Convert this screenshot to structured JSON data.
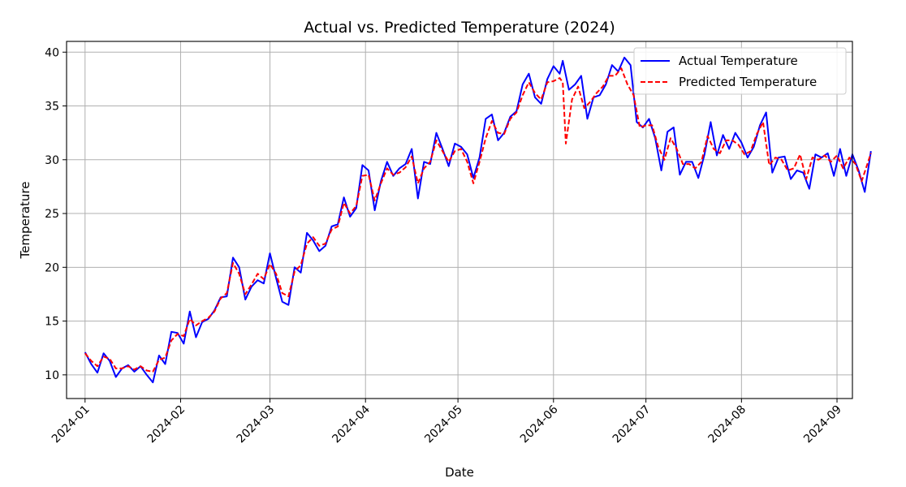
{
  "chart_data": {
    "type": "line",
    "title": "Actual vs. Predicted Temperature (2024)",
    "xlabel": "Date",
    "ylabel": "Temperature",
    "xlim": [
      "2023-12-26",
      "2024-09-06"
    ],
    "ylim": [
      7.8,
      41.0
    ],
    "x_ticks": [
      "2024-01",
      "2024-02",
      "2024-03",
      "2024-04",
      "2024-05",
      "2024-06",
      "2024-07",
      "2024-08",
      "2024-09"
    ],
    "y_ticks": [
      10,
      15,
      20,
      25,
      30,
      35,
      40
    ],
    "grid": true,
    "legend_position": "top-right",
    "series": [
      {
        "name": "Actual Temperature",
        "color": "#0000ff",
        "style": "solid",
        "points": [
          [
            "2024-01-01",
            12.1
          ],
          [
            "2024-01-03",
            11.0
          ],
          [
            "2024-01-05",
            10.2
          ],
          [
            "2024-01-07",
            12.0
          ],
          [
            "2024-01-09",
            11.3
          ],
          [
            "2024-01-11",
            9.8
          ],
          [
            "2024-01-13",
            10.6
          ],
          [
            "2024-01-15",
            10.9
          ],
          [
            "2024-01-17",
            10.3
          ],
          [
            "2024-01-19",
            10.8
          ],
          [
            "2024-01-21",
            10.0
          ],
          [
            "2024-01-23",
            9.3
          ],
          [
            "2024-01-25",
            11.8
          ],
          [
            "2024-01-27",
            11.0
          ],
          [
            "2024-01-29",
            14.0
          ],
          [
            "2024-01-31",
            13.9
          ],
          [
            "2024-02-02",
            12.9
          ],
          [
            "2024-02-04",
            15.9
          ],
          [
            "2024-02-06",
            13.5
          ],
          [
            "2024-02-08",
            14.9
          ],
          [
            "2024-02-10",
            15.2
          ],
          [
            "2024-02-12",
            16.0
          ],
          [
            "2024-02-14",
            17.2
          ],
          [
            "2024-02-16",
            17.3
          ],
          [
            "2024-02-18",
            20.9
          ],
          [
            "2024-02-20",
            20.0
          ],
          [
            "2024-02-22",
            17.0
          ],
          [
            "2024-02-24",
            18.2
          ],
          [
            "2024-02-26",
            18.8
          ],
          [
            "2024-02-28",
            18.5
          ],
          [
            "2024-03-01",
            21.3
          ],
          [
            "2024-03-03",
            19.0
          ],
          [
            "2024-03-05",
            16.8
          ],
          [
            "2024-03-07",
            16.5
          ],
          [
            "2024-03-09",
            20.0
          ],
          [
            "2024-03-11",
            19.5
          ],
          [
            "2024-03-13",
            23.2
          ],
          [
            "2024-03-15",
            22.5
          ],
          [
            "2024-03-17",
            21.5
          ],
          [
            "2024-03-19",
            22.0
          ],
          [
            "2024-03-21",
            23.8
          ],
          [
            "2024-03-23",
            24.0
          ],
          [
            "2024-03-25",
            26.5
          ],
          [
            "2024-03-27",
            24.7
          ],
          [
            "2024-03-29",
            25.5
          ],
          [
            "2024-03-31",
            29.5
          ],
          [
            "2024-04-02",
            29.0
          ],
          [
            "2024-04-04",
            25.3
          ],
          [
            "2024-04-06",
            28.0
          ],
          [
            "2024-04-08",
            29.8
          ],
          [
            "2024-04-10",
            28.5
          ],
          [
            "2024-04-12",
            29.2
          ],
          [
            "2024-04-14",
            29.6
          ],
          [
            "2024-04-16",
            31.0
          ],
          [
            "2024-04-18",
            26.4
          ],
          [
            "2024-04-20",
            29.8
          ],
          [
            "2024-04-22",
            29.6
          ],
          [
            "2024-04-24",
            32.5
          ],
          [
            "2024-04-26",
            31.0
          ],
          [
            "2024-04-28",
            29.4
          ],
          [
            "2024-04-30",
            31.5
          ],
          [
            "2024-05-02",
            31.2
          ],
          [
            "2024-05-04",
            30.5
          ],
          [
            "2024-05-06",
            28.3
          ],
          [
            "2024-05-08",
            30.2
          ],
          [
            "2024-05-10",
            33.8
          ],
          [
            "2024-05-12",
            34.2
          ],
          [
            "2024-05-14",
            31.8
          ],
          [
            "2024-05-16",
            32.5
          ],
          [
            "2024-05-18",
            34.0
          ],
          [
            "2024-05-20",
            34.5
          ],
          [
            "2024-05-22",
            37.0
          ],
          [
            "2024-05-24",
            38.0
          ],
          [
            "2024-05-26",
            35.8
          ],
          [
            "2024-05-28",
            35.2
          ],
          [
            "2024-05-30",
            37.5
          ],
          [
            "2024-06-01",
            38.7
          ],
          [
            "2024-06-03",
            38.0
          ],
          [
            "2024-06-04",
            39.2
          ],
          [
            "2024-06-06",
            36.5
          ],
          [
            "2024-06-08",
            37.0
          ],
          [
            "2024-06-10",
            37.8
          ],
          [
            "2024-06-12",
            33.8
          ],
          [
            "2024-06-14",
            35.8
          ],
          [
            "2024-06-16",
            36.0
          ],
          [
            "2024-06-18",
            37.0
          ],
          [
            "2024-06-20",
            38.8
          ],
          [
            "2024-06-22",
            38.2
          ],
          [
            "2024-06-24",
            39.5
          ],
          [
            "2024-06-26",
            38.8
          ],
          [
            "2024-06-28",
            33.5
          ],
          [
            "2024-06-30",
            33.0
          ],
          [
            "2024-07-02",
            33.8
          ],
          [
            "2024-07-04",
            32.0
          ],
          [
            "2024-07-06",
            29.0
          ],
          [
            "2024-07-08",
            32.6
          ],
          [
            "2024-07-10",
            33.0
          ],
          [
            "2024-07-12",
            28.6
          ],
          [
            "2024-07-14",
            29.8
          ],
          [
            "2024-07-16",
            29.8
          ],
          [
            "2024-07-18",
            28.3
          ],
          [
            "2024-07-20",
            30.5
          ],
          [
            "2024-07-22",
            33.5
          ],
          [
            "2024-07-24",
            30.4
          ],
          [
            "2024-07-26",
            32.3
          ],
          [
            "2024-07-28",
            31.0
          ],
          [
            "2024-07-30",
            32.5
          ],
          [
            "2024-08-01",
            31.6
          ],
          [
            "2024-08-03",
            30.2
          ],
          [
            "2024-08-05",
            31.2
          ],
          [
            "2024-08-07",
            33.2
          ],
          [
            "2024-08-09",
            34.4
          ],
          [
            "2024-08-11",
            28.8
          ],
          [
            "2024-08-13",
            30.2
          ],
          [
            "2024-08-15",
            30.3
          ],
          [
            "2024-08-17",
            28.2
          ],
          [
            "2024-08-19",
            29.0
          ],
          [
            "2024-08-21",
            28.8
          ],
          [
            "2024-08-23",
            27.3
          ],
          [
            "2024-08-25",
            30.5
          ],
          [
            "2024-08-27",
            30.2
          ],
          [
            "2024-08-29",
            30.6
          ],
          [
            "2024-08-31",
            28.5
          ],
          [
            "2024-09-02",
            31.0
          ],
          [
            "2024-09-04",
            28.5
          ],
          [
            "2024-09-06",
            30.5
          ],
          [
            "2024-09-08",
            29.0
          ],
          [
            "2024-09-10",
            27.0
          ],
          [
            "2024-09-12",
            30.8
          ]
        ]
      },
      {
        "name": "Predicted Temperature",
        "color": "#ff0000",
        "style": "dashed",
        "points": [
          [
            "2024-01-01",
            12.0
          ],
          [
            "2024-01-03",
            11.3
          ],
          [
            "2024-01-05",
            10.8
          ],
          [
            "2024-01-07",
            11.7
          ],
          [
            "2024-01-09",
            11.5
          ],
          [
            "2024-01-11",
            10.6
          ],
          [
            "2024-01-13",
            10.6
          ],
          [
            "2024-01-15",
            10.8
          ],
          [
            "2024-01-17",
            10.5
          ],
          [
            "2024-01-19",
            10.8
          ],
          [
            "2024-01-21",
            10.4
          ],
          [
            "2024-01-23",
            10.3
          ],
          [
            "2024-01-25",
            11.4
          ],
          [
            "2024-01-27",
            11.6
          ],
          [
            "2024-01-29",
            13.2
          ],
          [
            "2024-01-31",
            13.8
          ],
          [
            "2024-02-02",
            13.6
          ],
          [
            "2024-02-04",
            15.2
          ],
          [
            "2024-02-06",
            14.6
          ],
          [
            "2024-02-08",
            15.0
          ],
          [
            "2024-02-10",
            15.3
          ],
          [
            "2024-02-12",
            15.9
          ],
          [
            "2024-02-14",
            17.1
          ],
          [
            "2024-02-16",
            17.6
          ],
          [
            "2024-02-18",
            20.4
          ],
          [
            "2024-02-20",
            19.4
          ],
          [
            "2024-02-22",
            17.5
          ],
          [
            "2024-02-24",
            18.4
          ],
          [
            "2024-02-26",
            19.4
          ],
          [
            "2024-02-28",
            18.9
          ],
          [
            "2024-03-01",
            20.3
          ],
          [
            "2024-03-03",
            19.4
          ],
          [
            "2024-03-05",
            17.6
          ],
          [
            "2024-03-07",
            17.3
          ],
          [
            "2024-03-09",
            19.6
          ],
          [
            "2024-03-11",
            20.2
          ],
          [
            "2024-03-13",
            22.2
          ],
          [
            "2024-03-15",
            22.8
          ],
          [
            "2024-03-17",
            22.0
          ],
          [
            "2024-03-19",
            22.2
          ],
          [
            "2024-03-21",
            23.5
          ],
          [
            "2024-03-23",
            23.8
          ],
          [
            "2024-03-25",
            26.0
          ],
          [
            "2024-03-27",
            25.0
          ],
          [
            "2024-03-29",
            25.7
          ],
          [
            "2024-03-31",
            28.5
          ],
          [
            "2024-04-02",
            28.6
          ],
          [
            "2024-04-04",
            26.2
          ],
          [
            "2024-04-06",
            27.8
          ],
          [
            "2024-04-08",
            29.2
          ],
          [
            "2024-04-10",
            28.6
          ],
          [
            "2024-04-12",
            28.8
          ],
          [
            "2024-04-14",
            29.3
          ],
          [
            "2024-04-16",
            30.3
          ],
          [
            "2024-04-18",
            27.8
          ],
          [
            "2024-04-20",
            29.2
          ],
          [
            "2024-04-22",
            29.8
          ],
          [
            "2024-04-24",
            31.8
          ],
          [
            "2024-04-26",
            30.8
          ],
          [
            "2024-04-28",
            29.8
          ],
          [
            "2024-04-30",
            30.8
          ],
          [
            "2024-05-02",
            31.0
          ],
          [
            "2024-05-04",
            29.8
          ],
          [
            "2024-05-06",
            27.8
          ],
          [
            "2024-05-08",
            29.8
          ],
          [
            "2024-05-10",
            32.0
          ],
          [
            "2024-05-12",
            33.6
          ],
          [
            "2024-05-14",
            32.5
          ],
          [
            "2024-05-16",
            32.4
          ],
          [
            "2024-05-18",
            33.8
          ],
          [
            "2024-05-20",
            34.4
          ],
          [
            "2024-05-22",
            36.0
          ],
          [
            "2024-05-24",
            37.2
          ],
          [
            "2024-05-26",
            36.2
          ],
          [
            "2024-05-28",
            35.6
          ],
          [
            "2024-05-30",
            37.2
          ],
          [
            "2024-06-01",
            37.3
          ],
          [
            "2024-06-03",
            37.6
          ],
          [
            "2024-06-04",
            37.2
          ],
          [
            "2024-06-05",
            31.5
          ],
          [
            "2024-06-07",
            35.6
          ],
          [
            "2024-06-09",
            36.8
          ],
          [
            "2024-06-11",
            34.8
          ],
          [
            "2024-06-13",
            35.4
          ],
          [
            "2024-06-15",
            36.2
          ],
          [
            "2024-06-17",
            36.8
          ],
          [
            "2024-06-19",
            37.8
          ],
          [
            "2024-06-21",
            37.8
          ],
          [
            "2024-06-23",
            38.5
          ],
          [
            "2024-06-25",
            37.0
          ],
          [
            "2024-06-27",
            36.0
          ],
          [
            "2024-06-29",
            33.0
          ],
          [
            "2024-07-01",
            33.2
          ],
          [
            "2024-07-03",
            33.2
          ],
          [
            "2024-07-05",
            31.2
          ],
          [
            "2024-07-07",
            30.0
          ],
          [
            "2024-07-09",
            32.0
          ],
          [
            "2024-07-11",
            31.0
          ],
          [
            "2024-07-13",
            29.6
          ],
          [
            "2024-07-15",
            29.6
          ],
          [
            "2024-07-17",
            29.2
          ],
          [
            "2024-07-19",
            29.8
          ],
          [
            "2024-07-21",
            32.2
          ],
          [
            "2024-07-23",
            31.0
          ],
          [
            "2024-07-25",
            30.6
          ],
          [
            "2024-07-27",
            31.8
          ],
          [
            "2024-07-29",
            31.8
          ],
          [
            "2024-07-31",
            31.4
          ],
          [
            "2024-08-02",
            30.5
          ],
          [
            "2024-08-04",
            30.8
          ],
          [
            "2024-08-06",
            32.4
          ],
          [
            "2024-08-08",
            33.5
          ],
          [
            "2024-08-10",
            29.5
          ],
          [
            "2024-08-12",
            30.2
          ],
          [
            "2024-08-14",
            30.0
          ],
          [
            "2024-08-16",
            29.0
          ],
          [
            "2024-08-18",
            29.2
          ],
          [
            "2024-08-20",
            30.5
          ],
          [
            "2024-08-22",
            28.2
          ],
          [
            "2024-08-24",
            30.2
          ],
          [
            "2024-08-26",
            30.0
          ],
          [
            "2024-08-28",
            30.4
          ],
          [
            "2024-08-30",
            29.8
          ],
          [
            "2024-09-01",
            30.4
          ],
          [
            "2024-09-03",
            29.2
          ],
          [
            "2024-09-05",
            30.2
          ],
          [
            "2024-09-07",
            29.6
          ],
          [
            "2024-09-09",
            28.0
          ],
          [
            "2024-09-12",
            30.6
          ]
        ]
      }
    ]
  }
}
